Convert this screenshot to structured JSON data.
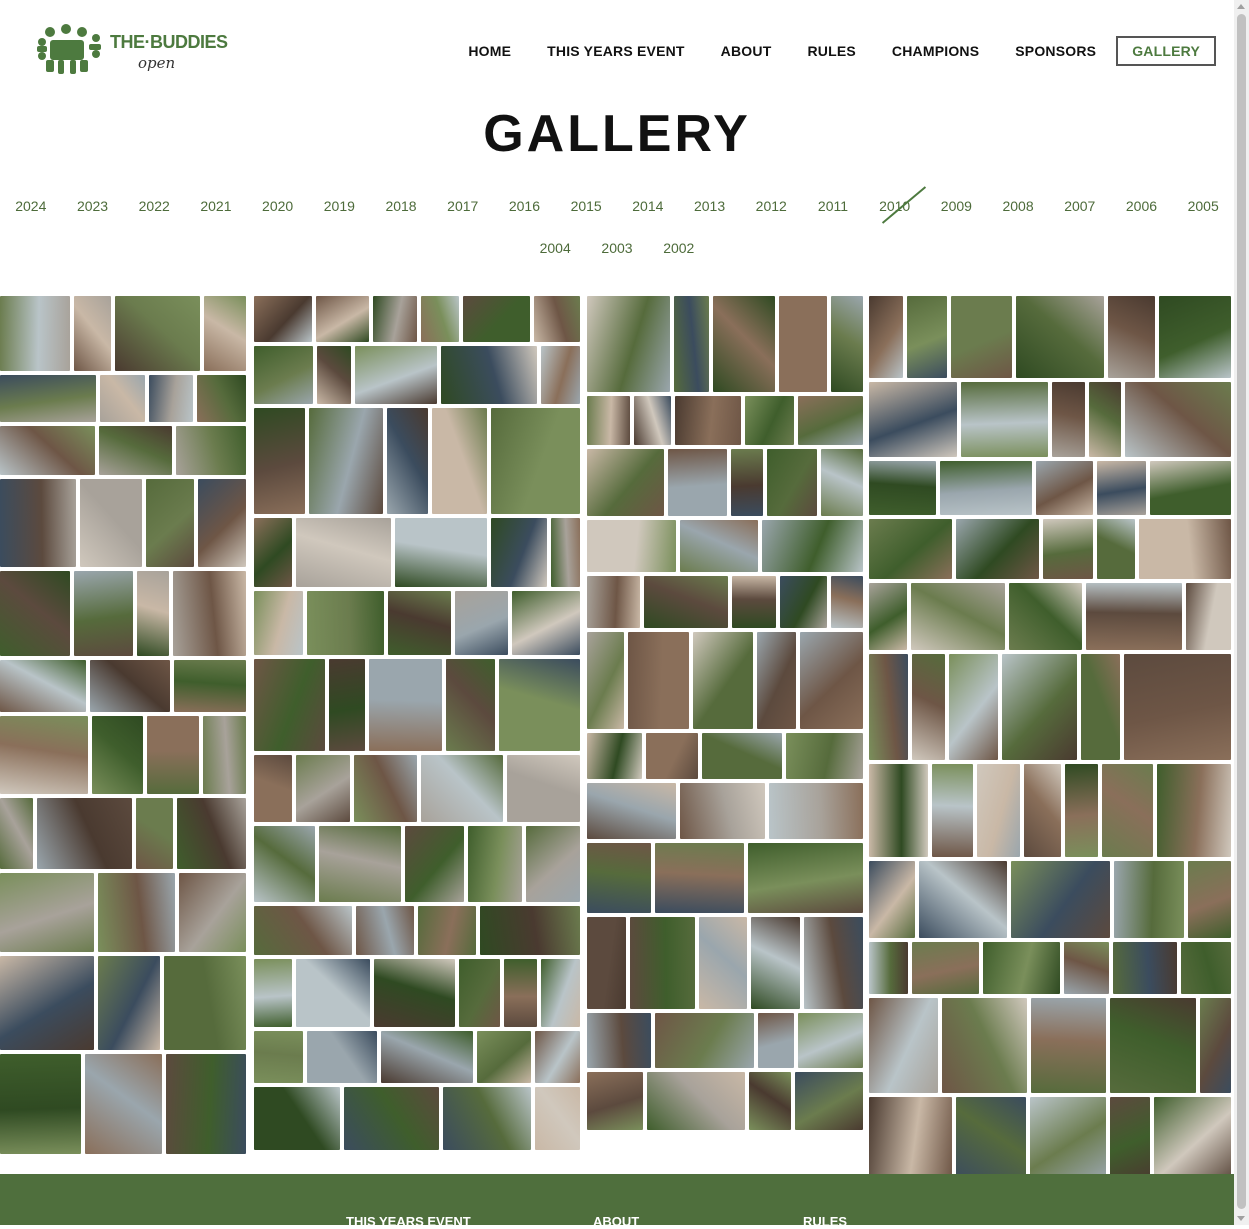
{
  "brand": {
    "name": "THE·BUDDIES",
    "sub": "open",
    "logo_icon": "buddies-group-icon",
    "color": "#4d7a3f"
  },
  "nav": {
    "items": [
      {
        "label": "HOME",
        "name": "nav-home"
      },
      {
        "label": "THIS YEARS EVENT",
        "name": "nav-this-years-event"
      },
      {
        "label": "ABOUT",
        "name": "nav-about"
      },
      {
        "label": "RULES",
        "name": "nav-rules"
      },
      {
        "label": "CHAMPIONS",
        "name": "nav-champions"
      },
      {
        "label": "SPONSORS",
        "name": "nav-sponsors"
      },
      {
        "label": "GALLERY",
        "name": "nav-gallery",
        "active": true
      }
    ]
  },
  "page": {
    "title": "GALLERY"
  },
  "years": {
    "row1": [
      "2024",
      "2023",
      "2022",
      "2021",
      "2020",
      "2019",
      "2018",
      "2017",
      "2016",
      "2015",
      "2014",
      "2013",
      "2012",
      "2011",
      "2010",
      "2009",
      "2008",
      "2007",
      "2006",
      "2005"
    ],
    "row2": [
      "2004",
      "2003",
      "2002"
    ],
    "current": "2010"
  },
  "footer": {
    "links": [
      "THIS YEARS EVENT",
      "ABOUT",
      "RULES"
    ],
    "background": "#4f6f3d"
  },
  "colors": {
    "link": "#4d6b3a",
    "accent": "#4d7a3f"
  }
}
